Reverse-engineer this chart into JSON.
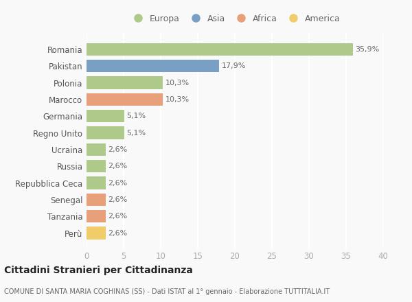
{
  "countries": [
    "Romania",
    "Pakistan",
    "Polonia",
    "Marocco",
    "Germania",
    "Regno Unito",
    "Ucraina",
    "Russia",
    "Repubblica Ceca",
    "Senegal",
    "Tanzania",
    "Perù"
  ],
  "values": [
    35.9,
    17.9,
    10.3,
    10.3,
    5.1,
    5.1,
    2.6,
    2.6,
    2.6,
    2.6,
    2.6,
    2.6
  ],
  "labels": [
    "35,9%",
    "17,9%",
    "10,3%",
    "10,3%",
    "5,1%",
    "5,1%",
    "2,6%",
    "2,6%",
    "2,6%",
    "2,6%",
    "2,6%",
    "2,6%"
  ],
  "colors": [
    "#aec98a",
    "#7a9fc4",
    "#aec98a",
    "#e8a07a",
    "#aec98a",
    "#aec98a",
    "#aec98a",
    "#aec98a",
    "#aec98a",
    "#e8a07a",
    "#e8a07a",
    "#f0cc6a"
  ],
  "legend_labels": [
    "Europa",
    "Asia",
    "Africa",
    "America"
  ],
  "legend_colors": [
    "#aec98a",
    "#7a9fc4",
    "#e8a07a",
    "#f0cc6a"
  ],
  "title": "Cittadini Stranieri per Cittadinanza",
  "subtitle": "COMUNE DI SANTA MARIA COGHINAS (SS) - Dati ISTAT al 1° gennaio - Elaborazione TUTTITALIA.IT",
  "xlim": [
    0,
    40
  ],
  "xticks": [
    0,
    5,
    10,
    15,
    20,
    25,
    30,
    35,
    40
  ],
  "background_color": "#f9f9f9",
  "grid_color": "#ffffff",
  "bar_height": 0.75
}
